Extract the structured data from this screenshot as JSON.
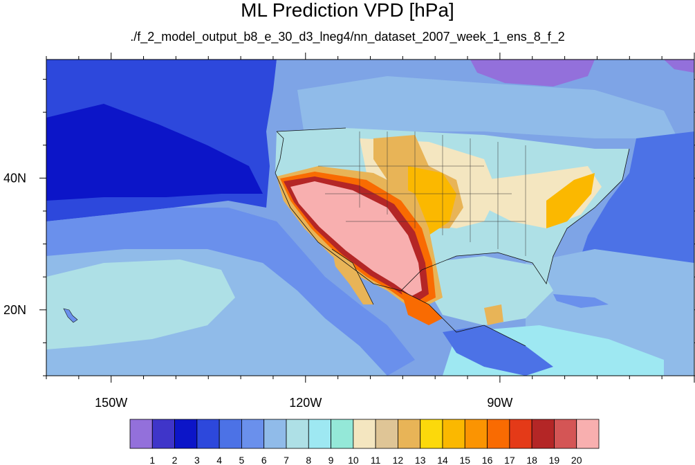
{
  "title": "ML Prediction VPD [hPa]",
  "subtitle": "./f_2_model_output_b8_e_30_d3_lneg4/nn_dataset_2007_week_1_ens_8_f_2",
  "map": {
    "projection": "cylindrical-equidistant",
    "lon_range": [
      -160,
      -60
    ],
    "lat_range": [
      10,
      58
    ],
    "lon_ticks": [
      {
        "value": -150,
        "label": "150W"
      },
      {
        "value": -120,
        "label": "120W"
      },
      {
        "value": -90,
        "label": "90W"
      }
    ],
    "lat_ticks": [
      {
        "value": 40,
        "label": "40N"
      },
      {
        "value": 20,
        "label": "20N"
      }
    ],
    "background_fill": "#7ea4e6"
  },
  "colorbar": {
    "levels": [
      "1",
      "2",
      "3",
      "4",
      "5",
      "6",
      "7",
      "8",
      "9",
      "10",
      "11",
      "12",
      "13",
      "14",
      "15",
      "16",
      "17",
      "18",
      "19",
      "20"
    ],
    "colors": [
      "#9370db",
      "#3f35c9",
      "#0c15c8",
      "#2d48dc",
      "#4c72e6",
      "#6a90ec",
      "#90bbe9",
      "#aee0e6",
      "#9ee8f2",
      "#94e8d8",
      "#f4e6c0",
      "#dfc596",
      "#e8b457",
      "#fcd90b",
      "#fbb800",
      "#fb9402",
      "#f96b02",
      "#e43a18",
      "#b42626",
      "#d45555",
      "#f8afaf"
    ]
  }
}
